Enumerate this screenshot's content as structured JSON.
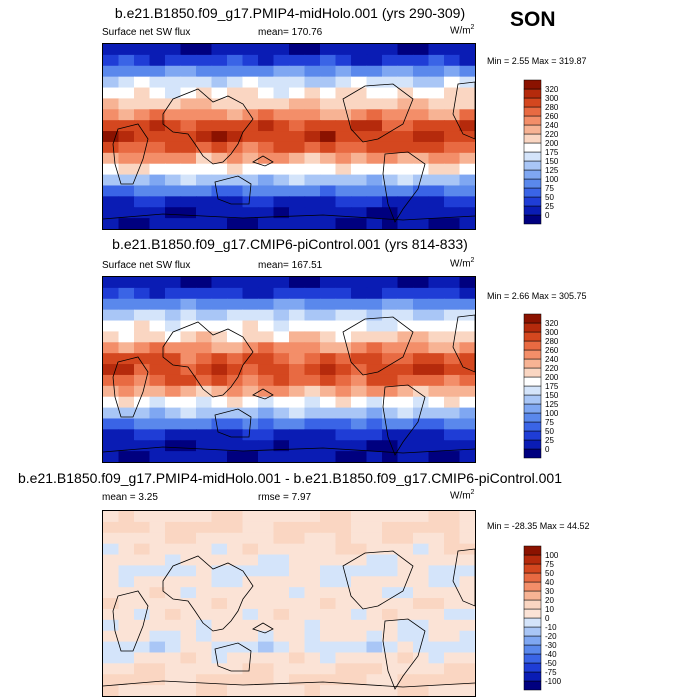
{
  "season": "SON",
  "units_base": "W/m",
  "units_exp": "2",
  "panels": [
    {
      "title": "b.e21.B1850.f09_g17.PMIP4-midHolo.001 (yrs 290-309)",
      "left_label": "Surface net SW flux",
      "stat_label": "mean= 170.76",
      "minmax": "Min =   2.55 Max = 319.87"
    },
    {
      "title": "b.e21.B1850.f09_g17.CMIP6-piControl.001 (yrs 814-833)",
      "left_label": "Surface net SW flux",
      "stat_label": "mean= 167.51",
      "minmax": "Min =   2.66 Max = 305.75"
    },
    {
      "title": "b.e21.B1850.f09_g17.PMIP4-midHolo.001 - b.e21.B1850.f09_g17.CMIP6-piControl.001",
      "left_label": "mean =   3.25",
      "stat_label": "rmse =   7.97",
      "minmax": "Min = -28.35 Max =  44.52"
    }
  ],
  "chart_data": [
    {
      "type": "heatmap",
      "title": "b.e21.B1850.f09_g17.PMIP4-midHolo.001 (yrs 290-309)",
      "variable": "Surface net SW flux",
      "units": "W/m2",
      "mean": 170.76,
      "min": 2.55,
      "max": 319.87,
      "colorbar_levels": [
        0,
        25,
        50,
        75,
        100,
        125,
        150,
        175,
        200,
        220,
        240,
        260,
        280,
        300,
        320
      ],
      "colorbar_colors": [
        "#00007f",
        "#0a1cb4",
        "#1f3dd6",
        "#3a64e6",
        "#5a88ec",
        "#7fa7f2",
        "#a9c6f6",
        "#d4e4fa",
        "#ffffff",
        "#fad6c2",
        "#f7b394",
        "#f38e69",
        "#e86a42",
        "#d4471f",
        "#b52a0c",
        "#8b1200"
      ],
      "latitude_profile": [
        5,
        40,
        100,
        160,
        195,
        215,
        250,
        290,
        300,
        280,
        240,
        190,
        140,
        80,
        25,
        5,
        2
      ]
    },
    {
      "type": "heatmap",
      "title": "b.e21.B1850.f09_g17.CMIP6-piControl.001 (yrs 814-833)",
      "variable": "Surface net SW flux",
      "units": "W/m2",
      "mean": 167.51,
      "min": 2.66,
      "max": 305.75,
      "colorbar_levels": [
        0,
        25,
        50,
        75,
        100,
        125,
        150,
        175,
        200,
        220,
        240,
        260,
        280,
        300,
        320
      ],
      "colorbar_colors": [
        "#00007f",
        "#0a1cb4",
        "#1f3dd6",
        "#3a64e6",
        "#5a88ec",
        "#7fa7f2",
        "#a9c6f6",
        "#d4e4fa",
        "#ffffff",
        "#fad6c2",
        "#f7b394",
        "#f38e69",
        "#e86a42",
        "#d4471f",
        "#b52a0c",
        "#8b1200"
      ],
      "latitude_profile": [
        4,
        35,
        90,
        150,
        185,
        210,
        245,
        280,
        290,
        275,
        235,
        185,
        135,
        75,
        25,
        5,
        2
      ]
    },
    {
      "type": "heatmap",
      "title": "b.e21.B1850.f09_g17.PMIP4-midHolo.001 - b.e21.B1850.f09_g17.CMIP6-piControl.001",
      "units": "W/m2",
      "mean": 3.25,
      "rmse": 7.97,
      "min": -28.35,
      "max": 44.52,
      "colorbar_levels": [
        -100,
        -75,
        -50,
        -40,
        -30,
        -20,
        -10,
        0,
        10,
        20,
        30,
        40,
        50,
        75,
        100
      ],
      "colorbar_colors": [
        "#00007f",
        "#0a1cb4",
        "#1f3dd6",
        "#3a64e6",
        "#5a88ec",
        "#7fa7f2",
        "#a9c6f6",
        "#d4e4fa",
        "#fbe3d6",
        "#fad6c2",
        "#f7b394",
        "#f38e69",
        "#e86a42",
        "#d4471f",
        "#b52a0c",
        "#8b1200"
      ],
      "latitude_profile": [
        8,
        12,
        10,
        6,
        3,
        -2,
        2,
        4,
        6,
        5,
        3,
        2,
        -3,
        5,
        10,
        12,
        8
      ]
    }
  ]
}
